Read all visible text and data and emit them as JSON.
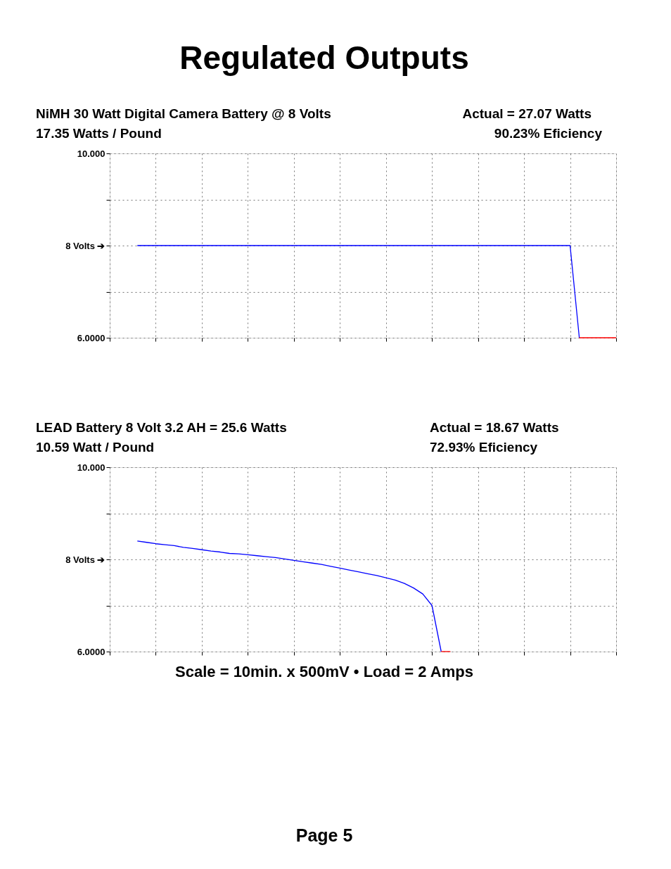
{
  "chart_data": [
    {
      "type": "line",
      "title": "NiMH 30 Watt Digital Camera Battery @ 8 Volts",
      "subtitle": "17.35 Watts / Pound",
      "annotations": [
        "Regulated Outputs",
        "Actual = 27.07 Watts",
        "90.23% Eficiency"
      ],
      "categories": [
        null,
        null,
        null,
        null,
        null,
        null,
        null,
        null,
        null,
        null,
        null,
        null,
        null,
        null,
        null,
        null,
        null,
        null,
        null,
        null,
        null,
        null,
        null,
        null,
        null,
        null,
        null,
        null,
        null,
        null,
        null,
        null,
        null,
        null,
        null,
        null,
        null,
        null,
        null,
        null,
        null,
        null,
        null,
        null,
        null,
        null,
        null,
        null,
        null,
        null,
        null,
        null,
        null,
        null,
        null,
        null
      ],
      "series": [
        {
          "color": "#0000ff",
          "values": [
            null,
            null,
            null,
            8,
            8,
            8,
            8,
            8,
            8,
            8,
            8,
            8,
            8,
            8,
            8,
            8,
            8,
            8,
            8,
            8,
            8,
            8,
            8,
            8,
            8,
            8,
            8,
            8,
            8,
            8,
            8,
            8,
            8,
            8,
            8,
            8,
            8,
            8,
            8,
            8,
            8,
            8,
            8,
            8,
            8,
            8,
            8,
            8,
            8,
            8,
            8,
            6,
            null,
            null,
            null,
            null
          ]
        },
        {
          "color": "#ff0000",
          "values": [
            null,
            null,
            null,
            null,
            null,
            null,
            null,
            null,
            null,
            null,
            null,
            null,
            null,
            null,
            null,
            null,
            null,
            null,
            null,
            null,
            null,
            null,
            null,
            null,
            null,
            null,
            null,
            null,
            null,
            null,
            null,
            null,
            null,
            null,
            null,
            null,
            null,
            null,
            null,
            null,
            null,
            null,
            null,
            null,
            null,
            null,
            null,
            null,
            null,
            null,
            null,
            6,
            6,
            6,
            6,
            6
          ]
        }
      ],
      "ylim": [
        6,
        10
      ],
      "yticks": [
        {
          "value": 6,
          "label": "6.0000"
        },
        {
          "value": 7,
          "label": null
        },
        {
          "value": 8,
          "label": "8 Volts ➔"
        },
        {
          "value": 9,
          "label": null
        },
        {
          "value": 10,
          "label": "10.000"
        }
      ],
      "tick_labels": "y",
      "grid": true,
      "legend": false
    },
    {
      "type": "line",
      "title": "LEAD Battery 8 Volt 3.2 AH = 25.6 Watts",
      "subtitle": "10.59 Watt / Pound",
      "annotations": [
        "Actual = 18.67 Watts",
        "72.93% Eficiency",
        "Scale = 10min. x 500mV  •  Load = 2 Amps",
        "Page 5"
      ],
      "categories": [
        null,
        null,
        null,
        null,
        null,
        null,
        null,
        null,
        null,
        null,
        null,
        null,
        null,
        null,
        null,
        null,
        null,
        null,
        null,
        null,
        null,
        null,
        null,
        null,
        null,
        null,
        null,
        null,
        null,
        null,
        null,
        null,
        null,
        null,
        null,
        null,
        null,
        null,
        null,
        null,
        null,
        null,
        null,
        null,
        null,
        null,
        null,
        null,
        null,
        null,
        null,
        null,
        null,
        null,
        null,
        null
      ],
      "series": [
        {
          "color": "#0000ff",
          "values": [
            null,
            null,
            null,
            8.4,
            8.37,
            8.34,
            8.32,
            8.3,
            8.26,
            8.24,
            8.21,
            8.18,
            8.16,
            8.13,
            8.12,
            8.1,
            8.08,
            8.06,
            8.04,
            8.01,
            7.98,
            7.95,
            7.92,
            7.89,
            7.85,
            7.81,
            7.77,
            7.73,
            7.69,
            7.65,
            7.6,
            7.55,
            7.48,
            7.38,
            7.25,
            7.0,
            6.0,
            null,
            null,
            null,
            null,
            null,
            null,
            null,
            null,
            null,
            null,
            null,
            null,
            null,
            null,
            null,
            null,
            null,
            null,
            null
          ]
        },
        {
          "color": "#ff0000",
          "values": [
            null,
            null,
            null,
            null,
            null,
            null,
            null,
            null,
            null,
            null,
            null,
            null,
            null,
            null,
            null,
            null,
            null,
            null,
            null,
            null,
            null,
            null,
            null,
            null,
            null,
            null,
            null,
            null,
            null,
            null,
            null,
            null,
            null,
            null,
            null,
            null,
            6,
            6,
            null,
            null,
            null,
            null,
            null,
            null,
            null,
            null,
            null,
            null,
            null,
            null,
            null,
            null,
            null,
            null,
            null,
            null
          ]
        }
      ],
      "ylim": [
        6,
        10
      ],
      "yticks": [
        {
          "value": 6,
          "label": "6.0000"
        },
        {
          "value": 7,
          "label": null
        },
        {
          "value": 8,
          "label": "8 Volts ➔"
        },
        {
          "value": 9,
          "label": null
        },
        {
          "value": 10,
          "label": "10.000"
        }
      ],
      "tick_labels": "y",
      "grid": true,
      "legend": false
    }
  ]
}
